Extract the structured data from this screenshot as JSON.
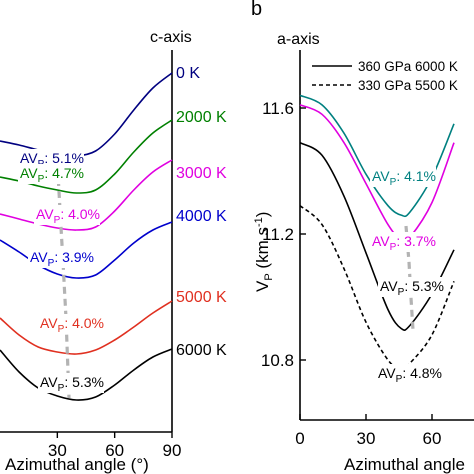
{
  "chart_data": [
    {
      "type": "line",
      "title": "c-axis",
      "xlabel": "Azimuthal angle (°)",
      "xlim": [
        0,
        90
      ],
      "xticks": [
        "30",
        "60",
        "90"
      ],
      "series": [
        {
          "name": "0 K",
          "color": "#000080",
          "x": [
            0,
            10,
            20,
            30,
            40,
            50,
            60,
            70,
            80,
            90
          ],
          "y": [
            141,
            145,
            150,
            154,
            156,
            151,
            134,
            110,
            88,
            73
          ],
          "annotation": "AVP: 5.1%"
        },
        {
          "name": "2000 K",
          "color": "#008000",
          "x": [
            0,
            10,
            20,
            30,
            40,
            50,
            60,
            70,
            80,
            90
          ],
          "y": [
            177,
            181,
            186,
            190,
            193,
            190,
            174,
            152,
            133,
            120
          ],
          "annotation": "AVP: 4.7%"
        },
        {
          "name": "3000 K",
          "color": "#e000e0",
          "x": [
            0,
            10,
            20,
            30,
            40,
            50,
            60,
            70,
            80,
            90
          ],
          "y": [
            214,
            219,
            224,
            228,
            230,
            227,
            211,
            190,
            172,
            160
          ],
          "annotation": "AVP: 4.0%"
        },
        {
          "name": "4000 K",
          "color": "#0000cc",
          "x": [
            0,
            10,
            20,
            30,
            40,
            50,
            60,
            70,
            80,
            90
          ],
          "y": [
            240,
            252,
            265,
            274,
            278,
            275,
            260,
            243,
            230,
            222
          ],
          "annotation": "AVP: 3.9%"
        },
        {
          "name": "5000 K",
          "color": "#e03020",
          "x": [
            0,
            10,
            20,
            30,
            40,
            50,
            60,
            70,
            80,
            90
          ],
          "y": [
            318,
            335,
            347,
            352,
            354,
            350,
            340,
            327,
            313,
            301
          ],
          "annotation": "AVP: 4.0%"
        },
        {
          "name": "6000 K",
          "color": "#000000",
          "x": [
            0,
            10,
            20,
            30,
            40,
            50,
            60,
            70,
            80,
            90
          ],
          "y": [
            350,
            372,
            388,
            396,
            400,
            397,
            385,
            370,
            357,
            349
          ],
          "annotation": "AVP: 5.3%"
        }
      ]
    },
    {
      "type": "line",
      "panel_label": "b",
      "title": "a-axis",
      "xlabel": "Azimuthal angle",
      "ylabel": "VP (km s-1)",
      "xlim": [
        0,
        90
      ],
      "ylim": [
        10.7,
        11.7
      ],
      "xticks": [
        "0",
        "30",
        "60"
      ],
      "yticks": [
        "10.8",
        "11.2",
        "11.6"
      ],
      "legend": {
        "placement": "top-right",
        "entries": [
          {
            "label": "360 GPa 6000 K",
            "style": "solid"
          },
          {
            "label": "330 GPa 5500 K",
            "style": "dashed"
          }
        ]
      },
      "series": [
        {
          "color": "#008080",
          "style": "solid",
          "x": [
            0,
            10,
            20,
            30,
            40,
            46,
            50,
            60,
            70
          ],
          "y": [
            11.64,
            11.61,
            11.52,
            11.39,
            11.29,
            11.26,
            11.27,
            11.38,
            11.55
          ],
          "annotation": "AVP: 4.1%"
        },
        {
          "color": "#e000e0",
          "style": "solid",
          "x": [
            0,
            10,
            20,
            30,
            40,
            46,
            50,
            60,
            70
          ],
          "y": [
            11.61,
            11.58,
            11.49,
            11.36,
            11.23,
            11.18,
            11.19,
            11.3,
            11.49
          ],
          "annotation": "AVP: 3.7%"
        },
        {
          "color": "#000000",
          "style": "solid",
          "x": [
            0,
            10,
            20,
            30,
            40,
            46,
            50,
            60,
            70
          ],
          "y": [
            11.49,
            11.45,
            11.32,
            11.14,
            10.96,
            10.9,
            10.91,
            11.01,
            11.15
          ],
          "annotation": "AVP: 5.3%"
        },
        {
          "color": "#000000",
          "style": "dashed",
          "x": [
            0,
            10,
            20,
            30,
            40,
            46,
            50,
            60,
            70
          ],
          "y": [
            11.29,
            11.23,
            11.09,
            10.92,
            10.8,
            10.77,
            10.79,
            10.88,
            11.05
          ],
          "annotation": "AVP: 4.8%"
        }
      ]
    }
  ],
  "labels": {
    "left_title": "c-axis",
    "right_title": "a-axis",
    "panel_b": "b",
    "left_xlabel": "Azimuthal angle (°)",
    "right_xlabel": "Azimuthal angle",
    "right_ylabel_main": "V",
    "right_ylabel_sub": "P",
    "right_ylabel_units": " (km s",
    "right_ylabel_exp": "-1",
    "right_ylabel_close": ")"
  }
}
